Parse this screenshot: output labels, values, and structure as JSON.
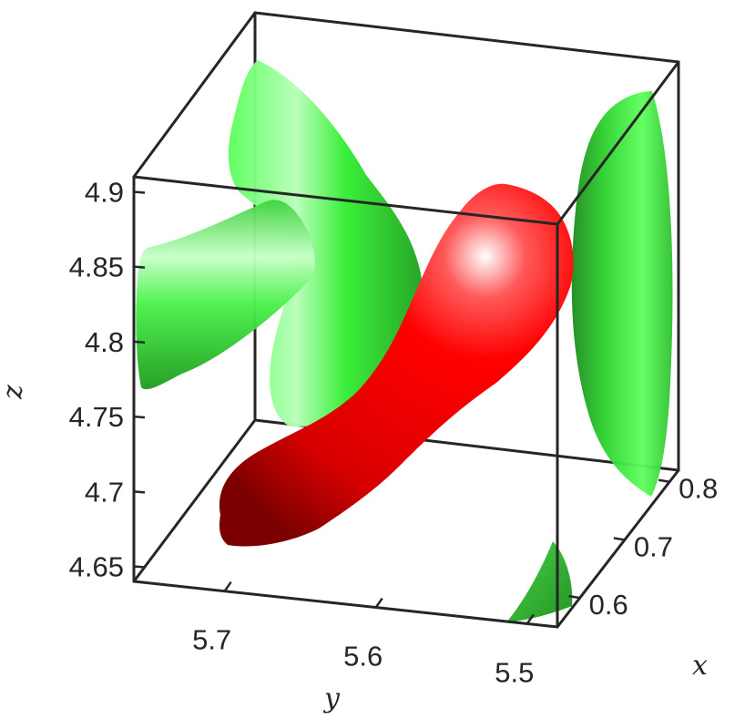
{
  "chart_data": {
    "type": "isosurface-3d",
    "title": "",
    "xlabel": "x",
    "ylabel": "y",
    "zlabel": "z",
    "xlim": [
      0.55,
      0.82
    ],
    "ylim": [
      5.48,
      5.76
    ],
    "zlim": [
      4.64,
      4.91
    ],
    "xticks": [
      "0.6",
      "0.7",
      "0.8"
    ],
    "yticks": [
      "5.7",
      "5.6",
      "5.5"
    ],
    "zticks": [
      "4.9",
      "4.85",
      "4.8",
      "4.75",
      "4.7",
      "4.65"
    ],
    "grid": false,
    "box": true,
    "series": [
      {
        "name": "",
        "color": "#ff0000",
        "surfaces": 1
      },
      {
        "name": "",
        "color": "#00ff00",
        "surfaces": 4
      }
    ]
  }
}
